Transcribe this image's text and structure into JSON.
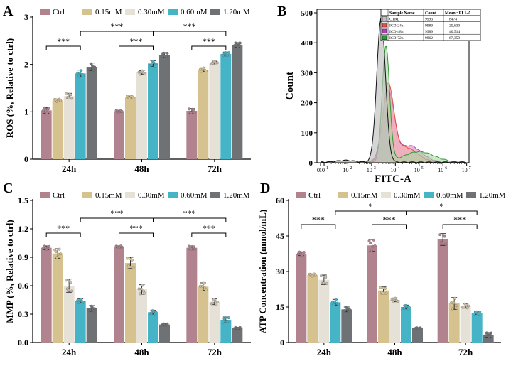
{
  "colors": {
    "Ctrl": "#b0838f",
    "0.15mM": "#d6c28e",
    "0.30mM": "#e6e1d7",
    "0.60mM": "#45b4c7",
    "1.20mM": "#6f7275",
    "axis": "#000000",
    "ctrl_hist": "#bfbfbf",
    "icd24_hist": "#e0514e",
    "icd48_hist": "#b03fbe",
    "icd72_hist": "#2e9a33"
  },
  "panels": {
    "A": "A",
    "B": "B",
    "C": "C",
    "D": "D"
  },
  "significance": "***",
  "significance_single": "*",
  "chart_data": [
    {
      "id": "A",
      "type": "bar",
      "ylabel": "ROS (%, Relative to ctrl)",
      "xlabel": "",
      "ylim": [
        0,
        3
      ],
      "yticks": [
        "0",
        "1",
        "2",
        "3"
      ],
      "categories": [
        "24h",
        "48h",
        "72h"
      ],
      "legend": [
        "Ctrl",
        "0.15mM",
        "0.30mM",
        "0.60mM",
        "1.20mM"
      ],
      "series": [
        {
          "name": "Ctrl",
          "values": [
            1.03,
            1.01,
            1.02
          ],
          "errors": [
            0.06,
            0.02,
            0.05
          ]
        },
        {
          "name": "0.15mM",
          "values": [
            1.24,
            1.31,
            1.89
          ],
          "errors": [
            0.03,
            0.02,
            0.04
          ]
        },
        {
          "name": "0.30mM",
          "values": [
            1.33,
            1.83,
            2.04
          ],
          "errors": [
            0.06,
            0.04,
            0.03
          ]
        },
        {
          "name": "0.60mM",
          "values": [
            1.81,
            2.02,
            2.22
          ],
          "errors": [
            0.07,
            0.06,
            0.04
          ]
        },
        {
          "name": "1.20mM",
          "values": [
            1.95,
            2.2,
            2.41
          ],
          "errors": [
            0.08,
            0.05,
            0.05
          ]
        }
      ]
    },
    {
      "id": "B",
      "type": "histogram",
      "xlabel": "FITC-A",
      "ylabel": "Count",
      "ylim": [
        0,
        500
      ],
      "yticks": [
        "0",
        "100",
        "200",
        "300",
        "400",
        "500"
      ],
      "xticks": [
        "0",
        "10",
        "10",
        "10",
        "10",
        "10",
        "10",
        "10"
      ],
      "xtick_exponents": [
        "",
        "1",
        "2",
        "3",
        "4",
        "5",
        "6",
        "7"
      ],
      "table_headers": [
        "Sample Name",
        "Count",
        "Mean : FL1-A"
      ],
      "table_rows": [
        {
          "name": "CTRL",
          "count": "9993",
          "mean": "8474"
        },
        {
          "name": "ICD-24h",
          "count": "9989",
          "mean": "25,630"
        },
        {
          "name": "ICD-48h",
          "count": "9989",
          "mean": "40,514"
        },
        {
          "name": "ICD-72h",
          "count": "9962",
          "mean": "67,359"
        }
      ],
      "series": [
        {
          "name": "CTRL",
          "peak_log10": 3.4,
          "peak_count": 480
        },
        {
          "name": "ICD-24h",
          "peak_log10": 3.7,
          "peak_count": 245
        },
        {
          "name": "ICD-48h",
          "peak_log10": 3.7,
          "peak_count": 230
        },
        {
          "name": "ICD-72h",
          "peak_log10": 3.6,
          "peak_count": 385
        }
      ]
    },
    {
      "id": "C",
      "type": "bar",
      "ylabel": "MMP (%, Relative to ctrl)",
      "xlabel": "",
      "ylim": [
        0,
        1.5
      ],
      "yticks": [
        "0.0",
        "0.3",
        "0.6",
        "0.9",
        "1.2",
        "1.5"
      ],
      "categories": [
        "24h",
        "48h",
        "72h"
      ],
      "legend": [
        "Ctrl",
        "0.15mM",
        "0.30mM",
        "0.60mM",
        "1.20mM"
      ],
      "series": [
        {
          "name": "Ctrl",
          "values": [
            1.0,
            1.01,
            1.0
          ],
          "errors": [
            0.02,
            0.01,
            0.02
          ]
        },
        {
          "name": "0.15mM",
          "values": [
            0.94,
            0.84,
            0.59
          ],
          "errors": [
            0.05,
            0.06,
            0.04
          ]
        },
        {
          "name": "0.30mM",
          "values": [
            0.6,
            0.56,
            0.43
          ],
          "errors": [
            0.07,
            0.05,
            0.03
          ]
        },
        {
          "name": "0.60mM",
          "values": [
            0.44,
            0.32,
            0.24
          ],
          "errors": [
            0.02,
            0.02,
            0.03
          ]
        },
        {
          "name": "1.20mM",
          "values": [
            0.36,
            0.19,
            0.15
          ],
          "errors": [
            0.03,
            0.01,
            0.01
          ]
        }
      ]
    },
    {
      "id": "D",
      "type": "bar",
      "ylabel": "ATP Concentration (mmol/mL)",
      "xlabel": "",
      "ylim": [
        0,
        60
      ],
      "yticks": [
        "0",
        "15",
        "30",
        "45",
        "60"
      ],
      "categories": [
        "24h",
        "48h",
        "72h"
      ],
      "legend": [
        "Ctrl",
        "0.15mM",
        "0.30mM",
        "0.60mM",
        "1.20mM"
      ],
      "series": [
        {
          "name": "Ctrl",
          "values": [
            37.5,
            41,
            43.5
          ],
          "errors": [
            0.8,
            2.5,
            2.5
          ]
        },
        {
          "name": "0.15mM",
          "values": [
            28.5,
            22,
            16.5
          ],
          "errors": [
            0.5,
            1.5,
            2.5
          ]
        },
        {
          "name": "0.30mM",
          "values": [
            26.5,
            18,
            15.5
          ],
          "errors": [
            2.0,
            0.8,
            1.0
          ]
        },
        {
          "name": "0.60mM",
          "values": [
            17,
            15,
            12.5
          ],
          "errors": [
            1.2,
            0.8,
            0.6
          ]
        },
        {
          "name": "1.20mM",
          "values": [
            14,
            6,
            3.2
          ],
          "errors": [
            1.0,
            0.3,
            1.0
          ]
        }
      ]
    }
  ]
}
